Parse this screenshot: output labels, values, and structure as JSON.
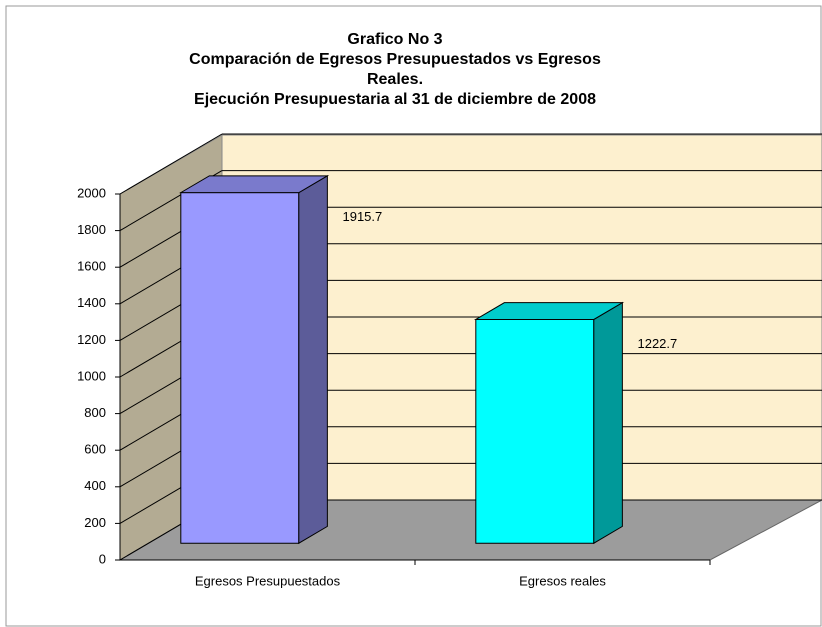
{
  "chart_data": {
    "type": "bar3d",
    "title": [
      "Grafico No 3",
      "Comparación de Egresos Presupuestados vs Egresos",
      "Reales.",
      "Ejecución Presupuestaria al 31 de diciembre de 2008"
    ],
    "categories": [
      "Egresos Presupuestados",
      "Egresos reales"
    ],
    "series": [
      {
        "values": [
          1915.7,
          1222.7
        ],
        "colors": [
          "#9999ff",
          "#00ffff"
        ]
      }
    ],
    "ylim": [
      0,
      2000
    ],
    "yticks": [
      0,
      200,
      400,
      600,
      800,
      1000,
      1200,
      1400,
      1600,
      1800,
      2000
    ],
    "grid": true
  }
}
